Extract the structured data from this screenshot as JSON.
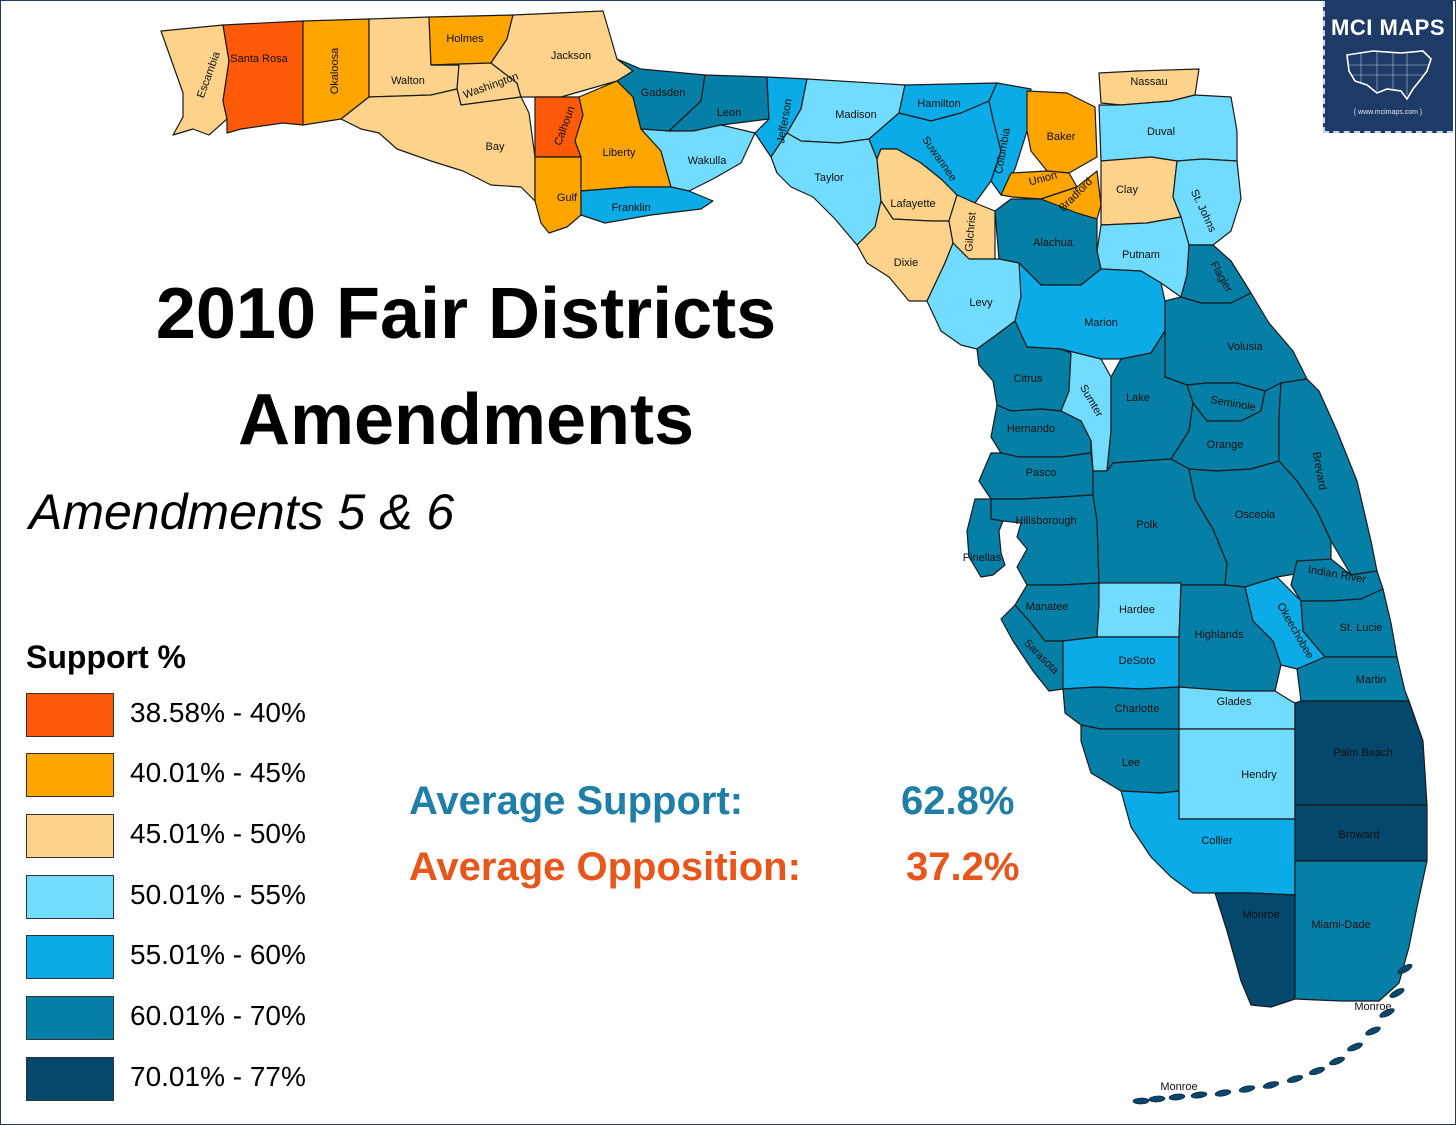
{
  "title": {
    "line1": "2010 Fair Districts",
    "line2": "Amendments",
    "subtitle": "Amendments 5 & 6"
  },
  "brand": {
    "badge_text": "MCI MAPS",
    "url": "{ www.mcimaps.com }",
    "icon": "usa-map-icon",
    "color": "#1e3a66"
  },
  "legend": {
    "title": "Support %",
    "items": [
      {
        "label": "38.58% - 40%",
        "color": "#ff5a0a"
      },
      {
        "label": "40.01% - 45%",
        "color": "#ffa500"
      },
      {
        "label": "45.01% - 50%",
        "color": "#fdd38b"
      },
      {
        "label": "50.01% - 55%",
        "color": "#72dcff"
      },
      {
        "label": "55.01% - 60%",
        "color": "#0aabe6"
      },
      {
        "label": "60.01% - 70%",
        "color": "#057fa6"
      },
      {
        "label": "70.01% - 77%",
        "color": "#05486e"
      }
    ]
  },
  "summary": {
    "support_label": "Average Support:",
    "support_value": "62.8%",
    "support_color": "#1f7fa6",
    "opposition_label": "Average Opposition:",
    "opposition_value": "37.2%",
    "opposition_color": "#e8561c"
  },
  "counties": [
    {
      "name": "Escambia",
      "bin": 2
    },
    {
      "name": "Santa Rosa",
      "bin": 0
    },
    {
      "name": "Okaloosa",
      "bin": 1
    },
    {
      "name": "Walton",
      "bin": 2
    },
    {
      "name": "Holmes",
      "bin": 1
    },
    {
      "name": "Washington",
      "bin": 2
    },
    {
      "name": "Jackson",
      "bin": 2
    },
    {
      "name": "Bay",
      "bin": 2
    },
    {
      "name": "Calhoun",
      "bin": 0
    },
    {
      "name": "Gulf",
      "bin": 1
    },
    {
      "name": "Liberty",
      "bin": 1
    },
    {
      "name": "Gadsden",
      "bin": 5
    },
    {
      "name": "Leon",
      "bin": 5
    },
    {
      "name": "Wakulla",
      "bin": 3
    },
    {
      "name": "Franklin",
      "bin": 4
    },
    {
      "name": "Jefferson",
      "bin": 4
    },
    {
      "name": "Madison",
      "bin": 3
    },
    {
      "name": "Taylor",
      "bin": 3
    },
    {
      "name": "Hamilton",
      "bin": 4
    },
    {
      "name": "Suwannee",
      "bin": 4
    },
    {
      "name": "Columbia",
      "bin": 4
    },
    {
      "name": "Lafayette",
      "bin": 2
    },
    {
      "name": "Dixie",
      "bin": 2
    },
    {
      "name": "Gilchrist",
      "bin": 2
    },
    {
      "name": "Baker",
      "bin": 1
    },
    {
      "name": "Union",
      "bin": 1
    },
    {
      "name": "Bradford",
      "bin": 1
    },
    {
      "name": "Nassau",
      "bin": 2
    },
    {
      "name": "Duval",
      "bin": 3
    },
    {
      "name": "Clay",
      "bin": 2
    },
    {
      "name": "St. Johns",
      "bin": 3
    },
    {
      "name": "Putnam",
      "bin": 3
    },
    {
      "name": "Alachua",
      "bin": 5
    },
    {
      "name": "Levy",
      "bin": 3
    },
    {
      "name": "Marion",
      "bin": 4
    },
    {
      "name": "Flagler",
      "bin": 5
    },
    {
      "name": "Volusia",
      "bin": 5
    },
    {
      "name": "Citrus",
      "bin": 5
    },
    {
      "name": "Sumter",
      "bin": 3
    },
    {
      "name": "Lake",
      "bin": 5
    },
    {
      "name": "Seminole",
      "bin": 5
    },
    {
      "name": "Hernando",
      "bin": 5
    },
    {
      "name": "Orange",
      "bin": 5
    },
    {
      "name": "Brevard",
      "bin": 5
    },
    {
      "name": "Pasco",
      "bin": 5
    },
    {
      "name": "Hillsborough",
      "bin": 5
    },
    {
      "name": "Pinellas",
      "bin": 5
    },
    {
      "name": "Polk",
      "bin": 5
    },
    {
      "name": "Osceola",
      "bin": 5
    },
    {
      "name": "Indian River",
      "bin": 5
    },
    {
      "name": "Manatee",
      "bin": 5
    },
    {
      "name": "Sarasota",
      "bin": 5
    },
    {
      "name": "Hardee",
      "bin": 3
    },
    {
      "name": "DeSoto",
      "bin": 4
    },
    {
      "name": "Highlands",
      "bin": 5
    },
    {
      "name": "Okeechobee",
      "bin": 4
    },
    {
      "name": "St. Lucie",
      "bin": 5
    },
    {
      "name": "Martin",
      "bin": 5
    },
    {
      "name": "Charlotte",
      "bin": 5
    },
    {
      "name": "Glades",
      "bin": 3
    },
    {
      "name": "Lee",
      "bin": 5
    },
    {
      "name": "Hendry",
      "bin": 3
    },
    {
      "name": "Palm Beach",
      "bin": 6
    },
    {
      "name": "Broward",
      "bin": 6
    },
    {
      "name": "Collier",
      "bin": 4
    },
    {
      "name": "Monroe",
      "bin": 6
    },
    {
      "name": "Miami-Dade",
      "bin": 5
    },
    {
      "name": "Monroe",
      "bin": 6
    },
    {
      "name": "Monroe",
      "bin": 6
    }
  ]
}
